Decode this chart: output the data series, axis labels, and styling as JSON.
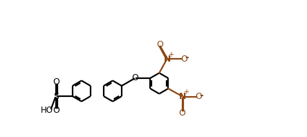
{
  "bg_color": "#ffffff",
  "line_color": "#000000",
  "bond_color": "#000000",
  "no2_color": "#8B4513",
  "bond_width": 1.6,
  "figsize": [
    4.44,
    1.98
  ],
  "dpi": 100,
  "xlim": [
    -1.5,
    12.5
  ],
  "ylim": [
    -2.5,
    5.0
  ]
}
